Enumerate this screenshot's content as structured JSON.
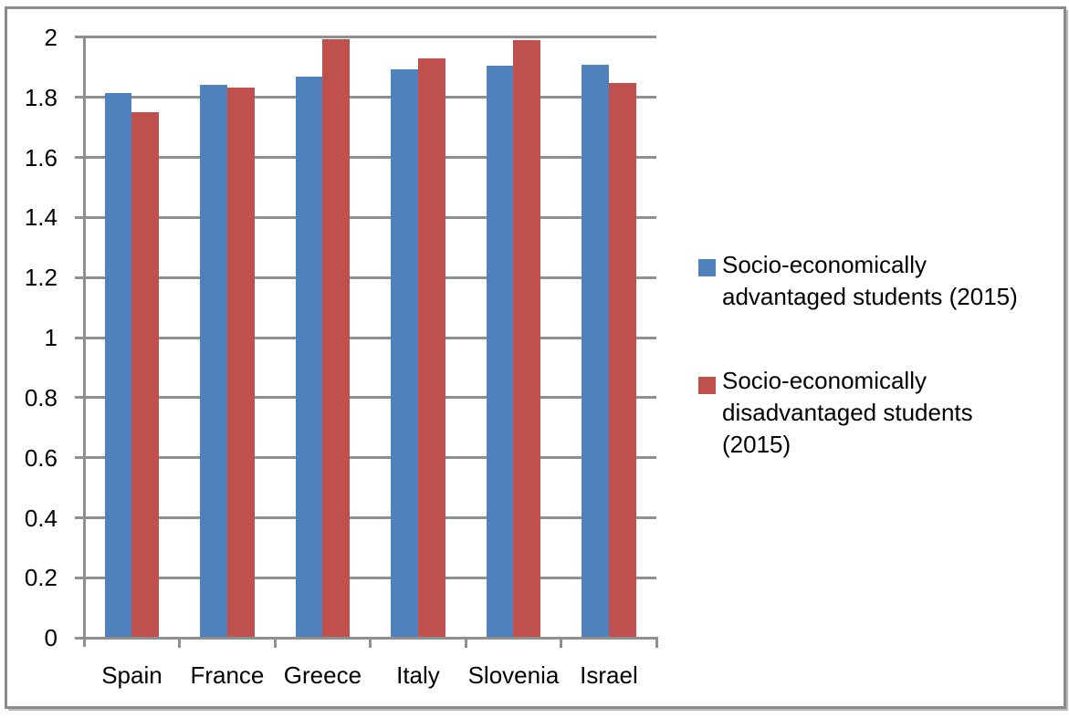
{
  "chart_data": {
    "type": "bar",
    "title": "",
    "xlabel": "",
    "ylabel": "",
    "categories": [
      "Spain",
      "France",
      "Greece",
      "Italy",
      "Slovenia",
      "Israel"
    ],
    "series": [
      {
        "name": "Socio-economically advantaged students (2015)",
        "color": "#4F81BD",
        "values": [
          1.815,
          1.841,
          1.868,
          1.893,
          1.904,
          1.908
        ]
      },
      {
        "name": "Socio-economically disadvantaged students (2015)",
        "color": "#C0504D",
        "values": [
          1.75,
          1.832,
          1.993,
          1.929,
          1.989,
          1.848
        ]
      }
    ],
    "ylim": [
      0,
      2
    ],
    "ytick_step": 0.2,
    "ytick_labels": [
      "0",
      "0.2",
      "0.4",
      "0.6",
      "0.8",
      "1",
      "1.2",
      "1.4",
      "1.6",
      "1.8",
      "2"
    ],
    "grid": true,
    "legend_position": "right-middle",
    "bar_gap_width_percent": 150
  },
  "legend": {
    "entries": [
      {
        "label": "Socio-economically advantaged students (2015)",
        "marker": "square",
        "color": "#4F81BD"
      },
      {
        "label": "Socio-economically disadvantaged students (2015)",
        "marker": "square",
        "color": "#C0504D"
      }
    ]
  },
  "colors": {
    "background": "#FFFFFF",
    "plot_background": "#FFFFFF",
    "gridline": "#8F8F8F",
    "axis_line": "#8F8F8F",
    "frame_border": "#8C8C8C",
    "text": "#000000"
  }
}
